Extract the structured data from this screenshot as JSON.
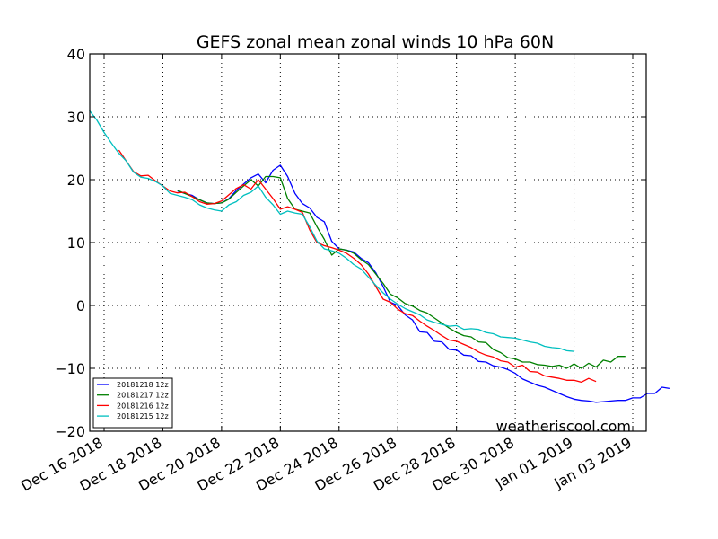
{
  "chart_data": {
    "type": "line",
    "title": "GEFS zonal mean zonal winds 10 hPa 60N",
    "xlabel": "",
    "ylabel": "",
    "ylim": [
      -20,
      40
    ],
    "yticks": [
      -20,
      -10,
      0,
      10,
      20,
      30,
      40
    ],
    "ytick_labels": [
      "−20",
      "−10",
      "0",
      "10",
      "20",
      "30",
      "40"
    ],
    "xlim_days_from_dec16": [
      -0.5,
      18.5
    ],
    "xticks_days_from_dec16": [
      0,
      2,
      4,
      6,
      8,
      10,
      12,
      14,
      16,
      18
    ],
    "xtick_labels": [
      "Dec 16 2018",
      "Dec 18 2018",
      "Dec 20 2018",
      "Dec 22 2018",
      "Dec 24 2018",
      "Dec 26 2018",
      "Dec 28 2018",
      "Dec 30 2018",
      "Jan 01 2019",
      "Jan 03 2019"
    ],
    "x_step_hours": 6,
    "grid": true,
    "legend_position": "lower-left",
    "annotation": "weatheriscool.com",
    "series": [
      {
        "name": "20181218 12z",
        "color": "#0000ff",
        "start_day": 2.5,
        "values": [
          18.2,
          17.8,
          17.5,
          16.8,
          16.3,
          16.2,
          16.3,
          17.0,
          18.3,
          19.3,
          20.3,
          20.9,
          19.5,
          21.5,
          22.3,
          20.5,
          17.8,
          16.2,
          15.5,
          14.0,
          13.3,
          10.2,
          9.0,
          8.8,
          8.5,
          7.5,
          6.8,
          5.2,
          3.0,
          0.5,
          0.0,
          -1.5,
          -2.3,
          -4.2,
          -4.3,
          -5.7,
          -5.8,
          -7.0,
          -7.1,
          -7.9,
          -8.0,
          -8.9,
          -9.0,
          -9.6,
          -9.8,
          -10.2,
          -10.8,
          -11.7,
          -12.2,
          -12.7,
          -13.0,
          -13.5,
          -14.0,
          -14.5,
          -14.9,
          -15.1,
          -15.2,
          -15.4,
          -15.3,
          -15.2,
          -15.1,
          -15.1,
          -14.7,
          -14.7,
          -14.0,
          -14.0,
          -13.0,
          -13.2
        ]
      },
      {
        "name": "20181217 12z",
        "color": "#008000",
        "start_day": 2.5,
        "values": [
          18.3,
          17.8,
          17.3,
          16.8,
          16.3,
          16.2,
          16.3,
          16.9,
          18.0,
          19.0,
          20.0,
          19.0,
          20.5,
          20.5,
          20.3,
          17.0,
          15.3,
          15.0,
          14.7,
          12.5,
          10.5,
          8.0,
          9.0,
          8.8,
          8.3,
          7.3,
          6.5,
          5.0,
          3.5,
          1.8,
          1.2,
          0.3,
          -0.1,
          -0.8,
          -1.2,
          -2.0,
          -2.8,
          -3.6,
          -4.3,
          -4.8,
          -5.0,
          -5.8,
          -5.9,
          -7.0,
          -7.5,
          -8.3,
          -8.5,
          -9.0,
          -9.0,
          -9.4,
          -9.5,
          -9.7,
          -9.5,
          -10.0,
          -9.3,
          -10.0,
          -9.2,
          -9.8,
          -8.7,
          -9.0,
          -8.1,
          -8.1
        ]
      },
      {
        "name": "20181216 12z",
        "color": "#ff0000",
        "start_day": 0.5,
        "values": [
          24.7,
          23.0,
          21.3,
          20.6,
          20.7,
          19.8,
          19.0,
          18.2,
          17.9,
          18.0,
          17.3,
          16.5,
          16.1,
          16.2,
          16.6,
          17.6,
          18.6,
          19.2,
          18.5,
          20.0,
          18.5,
          17.0,
          15.3,
          15.7,
          15.3,
          14.8,
          12.0,
          10.0,
          9.5,
          9.2,
          8.8,
          8.3,
          7.5,
          6.5,
          5.0,
          3.0,
          1.0,
          0.5,
          -0.6,
          -1.3,
          -1.6,
          -2.5,
          -3.3,
          -4.0,
          -4.8,
          -5.5,
          -5.7,
          -6.2,
          -6.7,
          -7.4,
          -7.9,
          -8.2,
          -8.8,
          -9.0,
          -9.8,
          -9.5,
          -10.5,
          -10.6,
          -11.2,
          -11.4,
          -11.6,
          -11.9,
          -11.9,
          -12.2,
          -11.6,
          -12.1
        ]
      },
      {
        "name": "20181215 12z",
        "color": "#00bfbf",
        "start_day": -0.5,
        "values": [
          31.0,
          29.5,
          27.5,
          25.8,
          24.2,
          23.0,
          21.2,
          20.4,
          20.2,
          19.7,
          19.0,
          17.8,
          17.5,
          17.2,
          16.8,
          16.0,
          15.5,
          15.2,
          15.0,
          16.0,
          16.5,
          17.5,
          18.0,
          19.0,
          17.2,
          16.0,
          14.5,
          15.0,
          14.7,
          14.5,
          12.5,
          10.2,
          9.0,
          8.7,
          8.3,
          7.5,
          6.5,
          5.8,
          4.5,
          3.2,
          2.0,
          1.0,
          0.2,
          -0.5,
          -1.0,
          -1.5,
          -2.3,
          -2.7,
          -3.0,
          -3.3,
          -3.2,
          -3.8,
          -3.7,
          -3.8,
          -4.3,
          -4.5,
          -5.0,
          -5.1,
          -5.2,
          -5.5,
          -5.8,
          -6.0,
          -6.5,
          -6.7,
          -6.8,
          -7.2,
          -7.3
        ]
      }
    ]
  }
}
